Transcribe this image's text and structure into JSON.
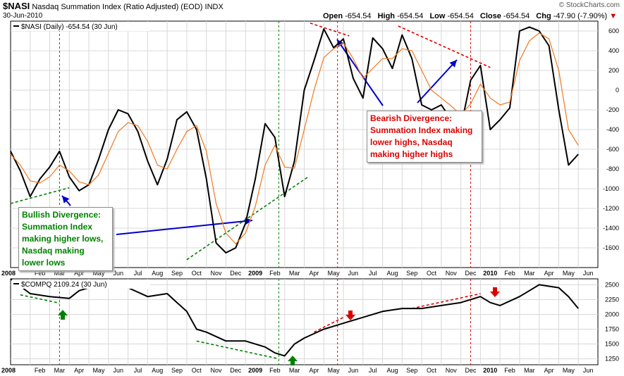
{
  "header": {
    "symbol": "$NASI",
    "name": "Nasdaq Summation Index (Ratio Adjusted) (EOD)",
    "exchange": "INDX",
    "date": "30-Jun-2010",
    "watermark": "© StockCharts.com",
    "open_label": "Open",
    "open": "-654.54",
    "high_label": "High",
    "high": "-654.54",
    "low_label": "Low",
    "low": "-654.54",
    "close_label": "Close",
    "close": "-654.54",
    "chg_label": "Chg",
    "chg": "-47.90 (-7.90%)",
    "chg_marker": "▼"
  },
  "annotations": {
    "bullish": "Bullish Divergence:\nSummation Index\nmaking higher lows,\nNasdaq making\nlower lows",
    "bearish": "Bearish Divergence:\nSummation Index making\nlower highs, Nasdaq\nmaking higher highs",
    "colors": {
      "bullish": "#008000",
      "bearish": "#dd0000",
      "arrow": "#0000cc",
      "line": "#000000",
      "ema": "#f07820"
    }
  },
  "chart_data": [
    {
      "type": "line",
      "title": "$NASI (Daily) -654.54 (30 Jun)",
      "legend": "$NASI (Daily) -654.54 (30 Jun)",
      "ylim": [
        -1800,
        700
      ],
      "yticks": [
        600,
        400,
        200,
        0,
        -200,
        -400,
        -600,
        -800,
        -1000,
        -1200,
        -1400,
        -1600
      ],
      "x_labels": [
        "2008",
        "Feb",
        "Mar",
        "Apr",
        "May",
        "Jun",
        "Jul",
        "Aug",
        "Sep",
        "Oct",
        "Nov",
        "Dec",
        "2009",
        "Feb",
        "Mar",
        "Apr",
        "May",
        "Jun",
        "Jul",
        "Aug",
        "Sep",
        "Oct",
        "Nov",
        "Dec",
        "2010",
        "Feb",
        "Mar",
        "Apr",
        "May",
        "Jun"
      ],
      "x_bold": [
        "2008",
        "2009",
        "2010"
      ],
      "series": [
        {
          "name": "$NASI",
          "x": [
            0,
            0.5,
            1,
            1.5,
            2,
            2.5,
            3,
            3.5,
            4,
            4.5,
            5,
            5.5,
            6,
            6.5,
            7,
            7.5,
            8,
            8.5,
            9,
            9.5,
            10,
            10.5,
            11,
            11.5,
            12,
            12.5,
            13,
            13.5,
            14,
            14.5,
            15,
            15.5,
            16,
            16.5,
            17,
            17.5,
            18,
            18.5,
            19,
            19.5,
            20,
            20.5,
            21,
            21.5,
            22,
            22.5,
            23,
            23.5,
            24,
            24.5,
            25,
            25.5,
            26,
            26.5,
            27,
            27.5,
            28,
            28.5,
            29
          ],
          "values": [
            -620,
            -820,
            -1080,
            -900,
            -780,
            -620,
            -880,
            -1020,
            -960,
            -700,
            -400,
            -200,
            -240,
            -420,
            -720,
            -960,
            -700,
            -300,
            -220,
            -400,
            -900,
            -1550,
            -1650,
            -1600,
            -1350,
            -900,
            -340,
            -480,
            -1080,
            -720,
            0,
            300,
            620,
            430,
            520,
            120,
            -80,
            530,
            420,
            220,
            560,
            320,
            -150,
            -200,
            -150,
            -300,
            -380,
            100,
            250,
            -400,
            -300,
            -180,
            600,
            640,
            600,
            450,
            -200,
            -760,
            -650
          ]
        },
        {
          "name": "EMA",
          "x": [
            0,
            0.5,
            1,
            1.5,
            2,
            2.5,
            3,
            3.5,
            4,
            4.5,
            5,
            5.5,
            6,
            6.5,
            7,
            7.5,
            8,
            8.5,
            9,
            9.5,
            10,
            10.5,
            11,
            11.5,
            12,
            12.5,
            13,
            13.5,
            14,
            14.5,
            15,
            15.5,
            16,
            16.5,
            17,
            17.5,
            18,
            18.5,
            19,
            19.5,
            20,
            20.5,
            21,
            21.5,
            22,
            22.5,
            23,
            23.5,
            24,
            24.5,
            25,
            25.5,
            26,
            26.5,
            27,
            27.5,
            28,
            28.5,
            29
          ],
          "values": [
            -650,
            -760,
            -920,
            -940,
            -880,
            -760,
            -820,
            -930,
            -960,
            -860,
            -640,
            -420,
            -330,
            -360,
            -520,
            -760,
            -800,
            -600,
            -420,
            -360,
            -620,
            -1150,
            -1450,
            -1560,
            -1450,
            -1180,
            -760,
            -560,
            -780,
            -790,
            -400,
            0,
            330,
            420,
            480,
            320,
            120,
            220,
            320,
            320,
            420,
            400,
            200,
            0,
            -80,
            -160,
            -250,
            -140,
            60,
            -80,
            -150,
            -120,
            300,
            500,
            580,
            520,
            200,
            -400,
            -560
          ]
        }
      ]
    },
    {
      "type": "line",
      "title": "$COMPQ 2109.24 (30 Jun)",
      "legend": "$COMPQ 2109.24 (30 Jun)",
      "ylim": [
        1150,
        2600
      ],
      "yticks": [
        2500,
        2250,
        2000,
        1750,
        1500,
        1250
      ],
      "x_labels": [
        "2008",
        "Feb",
        "Mar",
        "Apr",
        "May",
        "Jun",
        "Jul",
        "Aug",
        "Sep",
        "Oct",
        "Nov",
        "Dec",
        "2009",
        "Feb",
        "Mar",
        "Apr",
        "May",
        "Jun",
        "Jul",
        "Aug",
        "Sep",
        "Oct",
        "Nov",
        "Dec",
        "2010",
        "Feb",
        "Mar",
        "Apr",
        "May",
        "Jun"
      ],
      "x_bold": [
        "2008",
        "2009",
        "2010"
      ],
      "series": [
        {
          "name": "$COMPQ",
          "x": [
            0,
            1,
            2,
            3,
            3.5,
            4,
            5,
            6,
            7,
            8,
            8.5,
            9,
            9.5,
            10,
            11,
            12,
            12.5,
            13,
            13.5,
            14,
            14.5,
            15,
            16,
            16.5,
            17,
            18,
            19,
            20,
            21,
            22,
            23,
            24,
            24.5,
            25,
            26,
            26.5,
            27,
            28,
            28.5,
            29
          ],
          "values": [
            2600,
            2350,
            2300,
            2270,
            2400,
            2450,
            2480,
            2450,
            2300,
            2350,
            2200,
            2050,
            1750,
            1700,
            1550,
            1550,
            1500,
            1450,
            1350,
            1300,
            1500,
            1600,
            1750,
            1800,
            1850,
            1950,
            2050,
            2100,
            2100,
            2150,
            2200,
            2300,
            2200,
            2150,
            2300,
            2400,
            2500,
            2450,
            2300,
            2100
          ]
        }
      ]
    }
  ]
}
